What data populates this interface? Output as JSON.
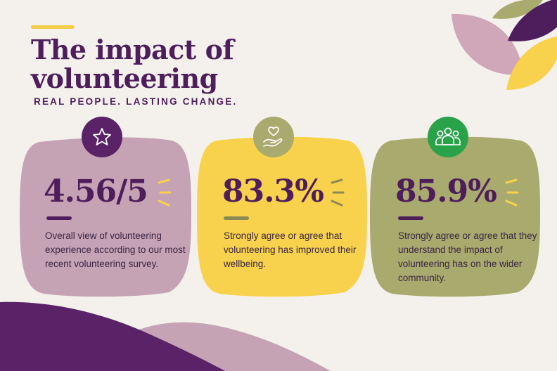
{
  "header": {
    "title": "The impact of volunteering",
    "subtitle": "REAL PEOPLE. LASTING CHANGE."
  },
  "colors": {
    "purple": "#4e1e5c",
    "mauve": "#c6a3b4",
    "yellow": "#f8d24c",
    "olive": "#a9aa6d",
    "green": "#2aa24a",
    "background": "#f4f1ec"
  },
  "cards": [
    {
      "icon": "star-icon",
      "stat": "4.56/5",
      "description": "Overall view of volunteering experience according to our most recent volunteering survey."
    },
    {
      "icon": "heart-in-hand-icon",
      "stat": "83.3%",
      "description": "Strongly agree or agree that volunteering has improved their wellbeing."
    },
    {
      "icon": "people-group-icon",
      "stat": "85.9%",
      "description": "Strongly agree or agree that they understand the impact of volunteering has on the wider community."
    }
  ]
}
